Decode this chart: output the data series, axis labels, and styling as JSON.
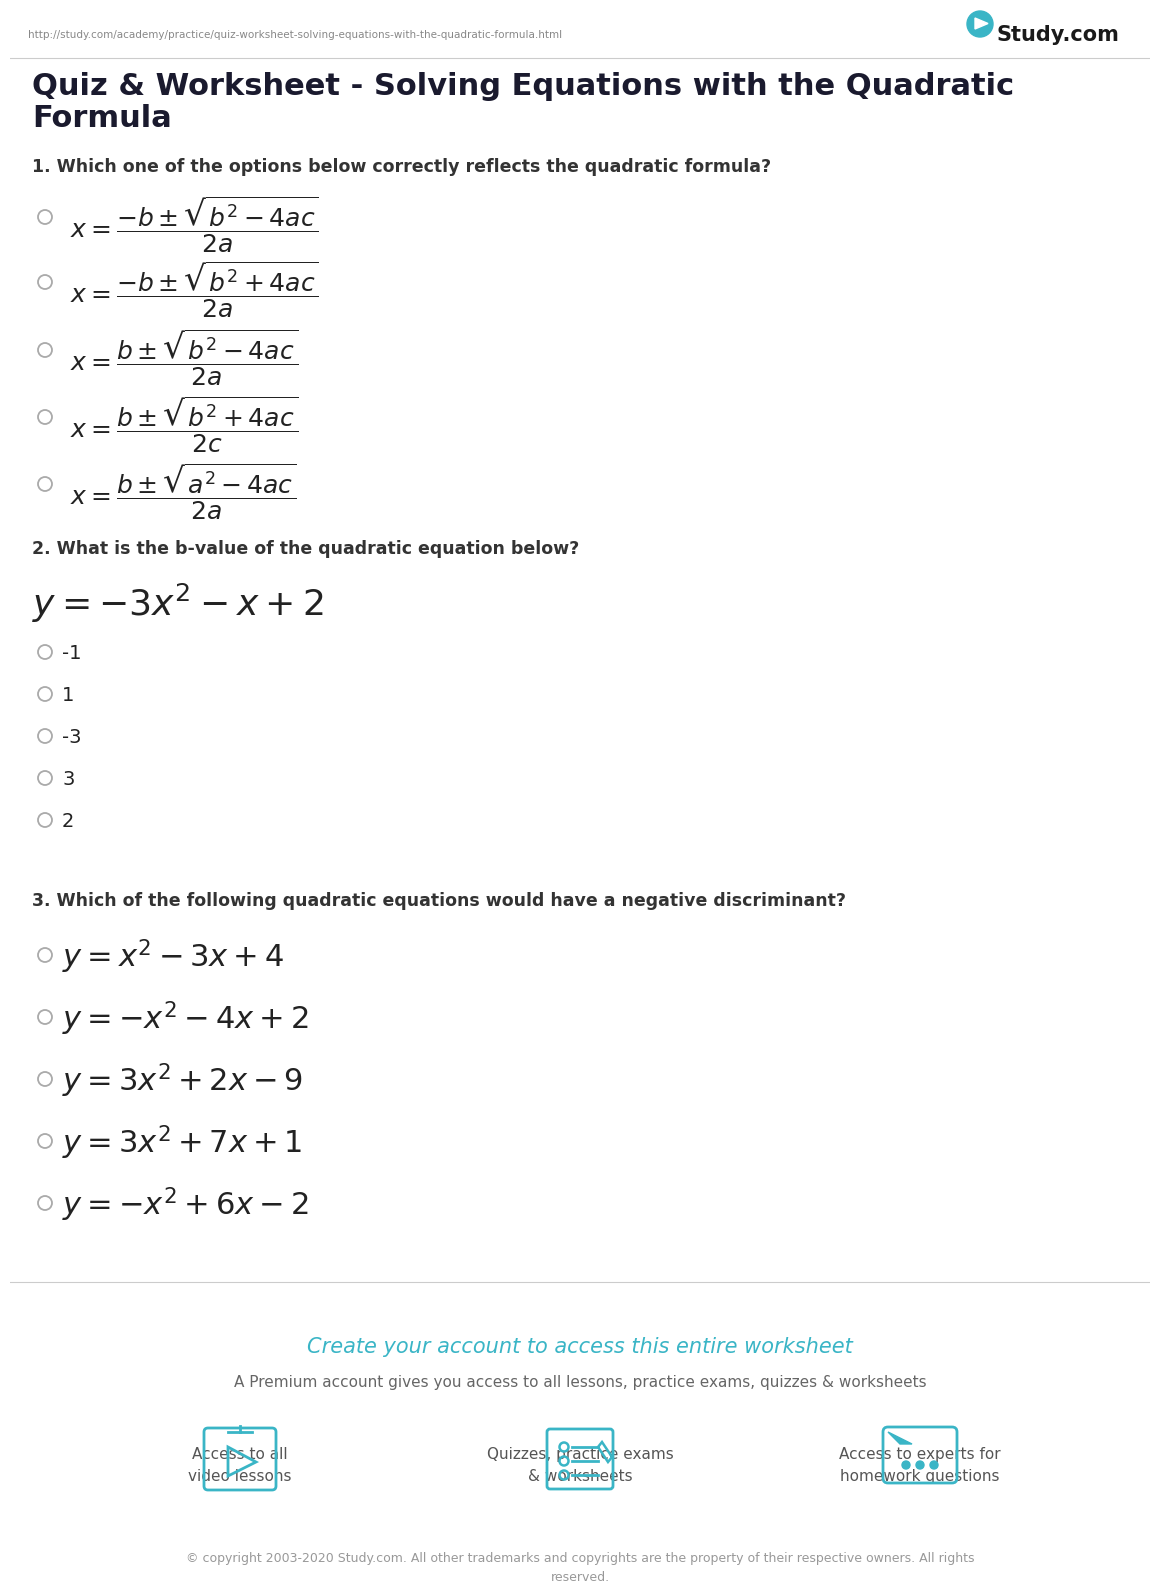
{
  "bg_color": "#ffffff",
  "url_text": "http://study.com/academy/practice/quiz-worksheet-solving-equations-with-the-quadratic-formula.html",
  "url_color": "#888888",
  "title_line1": "Quiz & Worksheet - Solving Equations with the Quadratic",
  "title_line2": "Formula",
  "title_color": "#1a1a2e",
  "title_fontsize": 22,
  "q1_text": "1. Which one of the options below correctly reflects the quadratic formula?",
  "q1_color": "#333333",
  "q2_text": "2. What is the b-value of the quadratic equation below?",
  "q2_color": "#333333",
  "q3_text": "3. Which of the following quadratic equations would have a negative discriminant?",
  "q3_color": "#333333",
  "radio_color": "#aaaaaa",
  "answer_color": "#222222",
  "teal_color": "#3ab5c6",
  "footer_text": "© copyright 2003-2020 Study.com. All other trademarks and copyrights are the property of their respective owners. All rights\nreserved.",
  "footer_color": "#999999",
  "create_account_text": "Create your account to access this entire worksheet",
  "create_account_color": "#3ab5c6",
  "premium_text": "A Premium account gives you access to all lessons, practice exams, quizzes & worksheets",
  "premium_color": "#666666",
  "icon_labels": [
    "Access to all\nvideo lessons",
    "Quizzes, practice exams\n& worksheets",
    "Access to experts for\nhomework questions"
  ],
  "icon_color": "#3ab5c6",
  "separator_color": "#cccccc",
  "q1_formulas": [
    "$x = \\dfrac{-b \\pm \\sqrt{b^2 - 4ac}}{2a}$",
    "$x = \\dfrac{-b \\pm \\sqrt{b^2 + 4ac}}{2a}$",
    "$x = \\dfrac{b \\pm \\sqrt{b^2 - 4ac}}{2a}$",
    "$x = \\dfrac{b \\pm \\sqrt{b^2 + 4ac}}{2c}$",
    "$x = \\dfrac{b \\pm \\sqrt{a^2 - 4ac}}{2a}$"
  ],
  "q2_equation": "$y = -3x^2 - x + 2$",
  "q2_options": [
    "-1",
    "1",
    "-3",
    "3",
    "2"
  ],
  "q3_options": [
    "$y = x^2 - 3x + 4$",
    "$y = -x^2 - 4x + 2$",
    "$y = 3x^2 + 2x - 9$",
    "$y = 3x^2 + 7x + 1$",
    "$y = -x^2 + 6x - 2$"
  ]
}
